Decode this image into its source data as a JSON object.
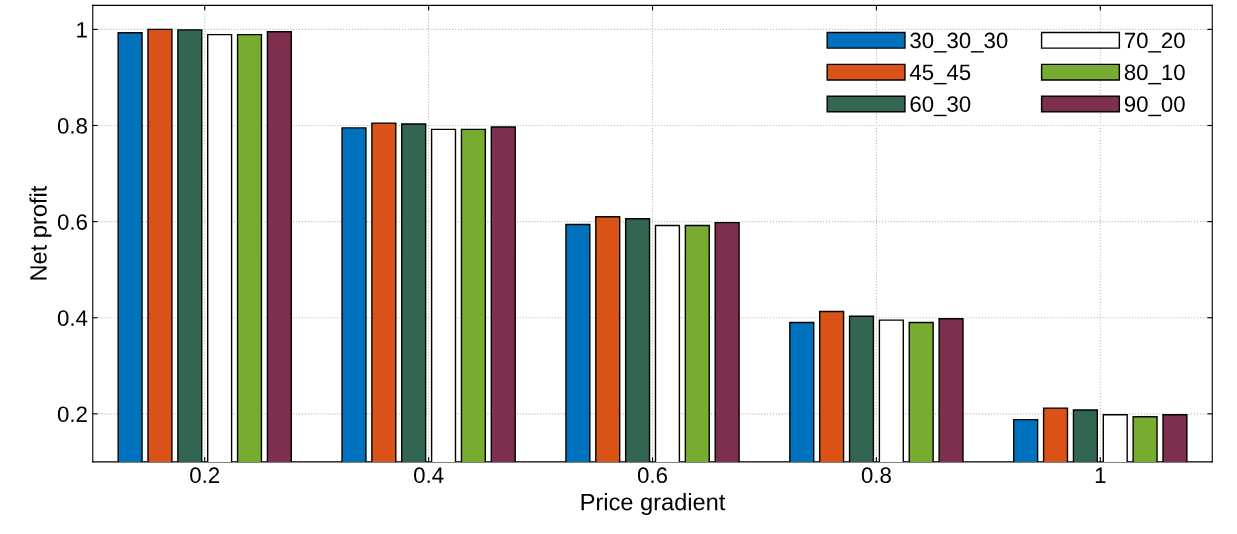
{
  "chart_data": {
    "type": "bar",
    "xlabel": "Price gradient",
    "ylabel": "Net profit",
    "categories": [
      "0.2",
      "0.4",
      "0.6",
      "0.8",
      "1"
    ],
    "series": [
      {
        "name": "30_30_30",
        "color": "#0072bd",
        "values": [
          0.993,
          0.795,
          0.594,
          0.39,
          0.188
        ]
      },
      {
        "name": "45_45",
        "color": "#d95319",
        "values": [
          1.0,
          0.805,
          0.61,
          0.413,
          0.212
        ]
      },
      {
        "name": "60_30",
        "color": "#336650",
        "values": [
          0.999,
          0.803,
          0.606,
          0.403,
          0.208
        ]
      },
      {
        "name": "70_20",
        "color": "#ffffff",
        "values": [
          0.989,
          0.792,
          0.592,
          0.395,
          0.198
        ]
      },
      {
        "name": "80_10",
        "color": "#77ac30",
        "values": [
          0.989,
          0.792,
          0.592,
          0.39,
          0.194
        ]
      },
      {
        "name": "90_00",
        "color": "#7e2f4e",
        "values": [
          0.995,
          0.797,
          0.598,
          0.398,
          0.198
        ]
      }
    ],
    "ylim": [
      0.1,
      1.05
    ],
    "yticks": [
      0.2,
      0.4,
      0.6,
      0.8,
      1
    ],
    "grid": true,
    "legend": "top right"
  }
}
